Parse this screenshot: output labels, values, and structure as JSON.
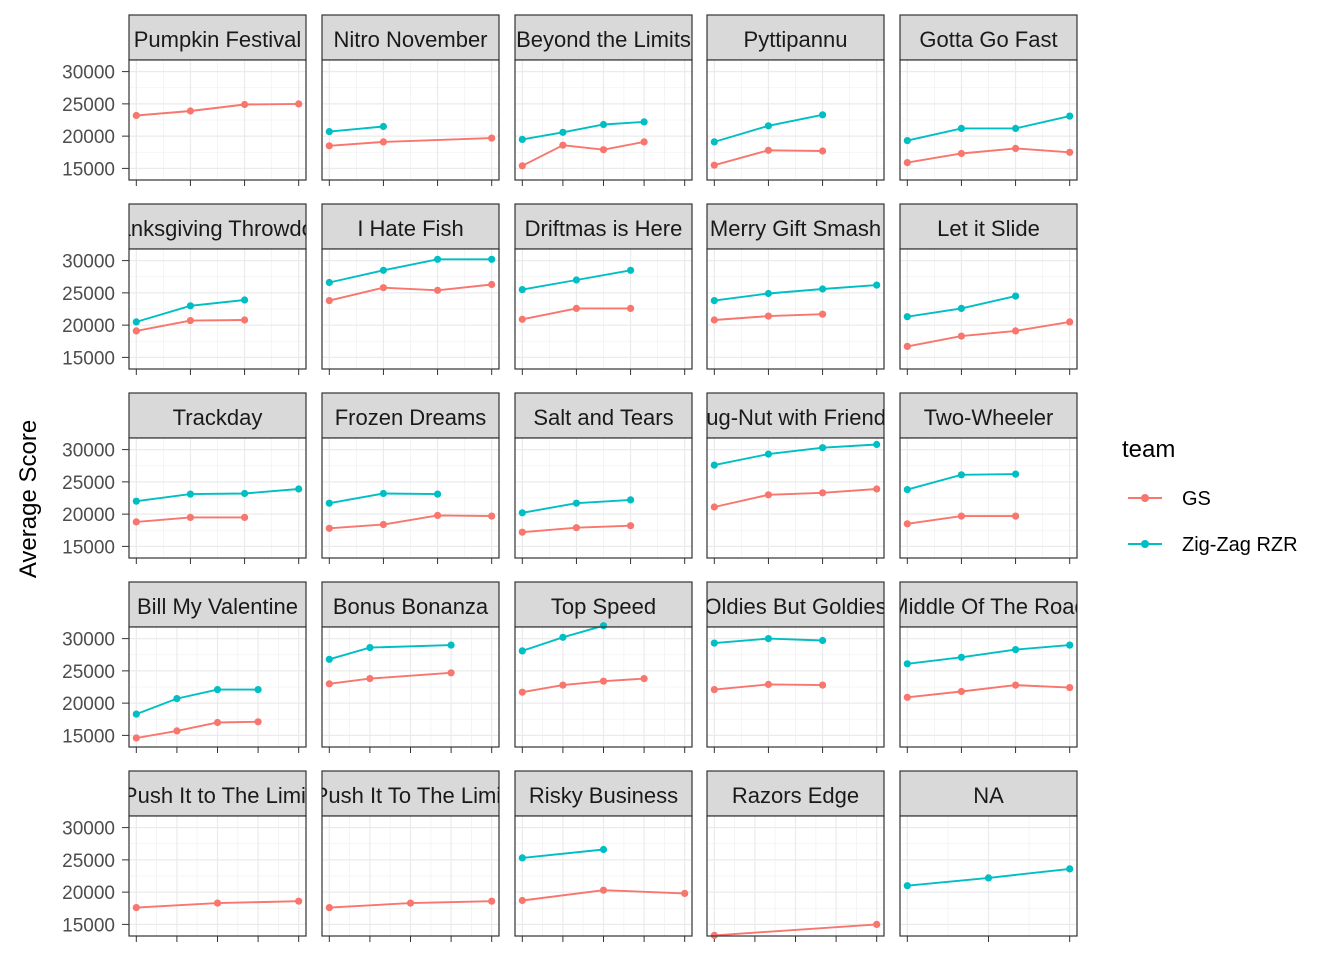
{
  "chart_data": {
    "type": "line",
    "facet_layout": "5x5 grid",
    "ylabel": "Average Score",
    "xlabel": "",
    "ylim": [
      13200,
      31800
    ],
    "y_ticks": [
      15000,
      20000,
      25000,
      30000
    ],
    "x_tick_labels_shown": false,
    "grid": true,
    "legend": {
      "title": "team",
      "placement": "right",
      "entries": [
        {
          "name": "GS",
          "color": "#F8766D"
        },
        {
          "name": "Zig-Zag RZR",
          "color": "#00BFC4"
        }
      ]
    },
    "series_colors": {
      "GS": "#F8766D",
      "Zig-Zag RZR": "#00BFC4"
    },
    "facets": [
      {
        "title": "Pumpkin Festival",
        "x": [
          1,
          2,
          3,
          4
        ],
        "series": [
          {
            "team": "GS",
            "points": [
              [
                1,
                23200
              ],
              [
                2,
                23900
              ],
              [
                3,
                24900
              ],
              [
                4,
                25000
              ]
            ]
          }
        ]
      },
      {
        "title": "Nitro November",
        "x": [
          1,
          2,
          3,
          4
        ],
        "series": [
          {
            "team": "GS",
            "points": [
              [
                1,
                18500
              ],
              [
                2,
                19100
              ],
              [
                4,
                19700
              ]
            ]
          },
          {
            "team": "Zig-Zag RZR",
            "points": [
              [
                1,
                20700
              ],
              [
                2,
                21500
              ]
            ]
          }
        ]
      },
      {
        "title": "Beyond the Limits",
        "x": [
          1,
          2,
          3,
          4,
          5
        ],
        "series": [
          {
            "team": "GS",
            "points": [
              [
                1,
                15400
              ],
              [
                2,
                18600
              ],
              [
                3,
                17900
              ],
              [
                4,
                19100
              ]
            ]
          },
          {
            "team": "Zig-Zag RZR",
            "points": [
              [
                1,
                19500
              ],
              [
                2,
                20600
              ],
              [
                3,
                21800
              ],
              [
                4,
                22200
              ]
            ]
          }
        ]
      },
      {
        "title": "Pyttipannu",
        "x": [
          1,
          2,
          3,
          4
        ],
        "series": [
          {
            "team": "GS",
            "points": [
              [
                1,
                15500
              ],
              [
                2,
                17800
              ],
              [
                3,
                17700
              ]
            ]
          },
          {
            "team": "Zig-Zag RZR",
            "points": [
              [
                1,
                19100
              ],
              [
                2,
                21600
              ],
              [
                3,
                23300
              ]
            ]
          }
        ]
      },
      {
        "title": "Gotta Go Fast",
        "x": [
          1,
          2,
          3,
          4
        ],
        "series": [
          {
            "team": "GS",
            "points": [
              [
                1,
                15900
              ],
              [
                2,
                17300
              ],
              [
                3,
                18100
              ],
              [
                4,
                17500
              ]
            ]
          },
          {
            "team": "Zig-Zag RZR",
            "points": [
              [
                1,
                19300
              ],
              [
                2,
                21200
              ],
              [
                3,
                21200
              ],
              [
                4,
                23100
              ]
            ]
          }
        ]
      },
      {
        "title": "Thanksgiving Throwdown",
        "x": [
          1,
          2,
          3,
          4
        ],
        "series": [
          {
            "team": "GS",
            "points": [
              [
                1,
                19100
              ],
              [
                2,
                20700
              ],
              [
                3,
                20800
              ]
            ]
          },
          {
            "team": "Zig-Zag RZR",
            "points": [
              [
                1,
                20500
              ],
              [
                2,
                23000
              ],
              [
                3,
                23900
              ]
            ]
          }
        ]
      },
      {
        "title": "I Hate Fish",
        "x": [
          1,
          2,
          3,
          4
        ],
        "series": [
          {
            "team": "GS",
            "points": [
              [
                1,
                23800
              ],
              [
                2,
                25800
              ],
              [
                3,
                25400
              ],
              [
                4,
                26300
              ]
            ]
          },
          {
            "team": "Zig-Zag RZR",
            "points": [
              [
                1,
                26600
              ],
              [
                2,
                28500
              ],
              [
                3,
                30200
              ],
              [
                4,
                30200
              ]
            ]
          }
        ]
      },
      {
        "title": "Driftmas is Here",
        "x": [
          1,
          2,
          3,
          4
        ],
        "series": [
          {
            "team": "GS",
            "points": [
              [
                1,
                20900
              ],
              [
                2,
                22600
              ],
              [
                3,
                22600
              ]
            ]
          },
          {
            "team": "Zig-Zag RZR",
            "points": [
              [
                1,
                25500
              ],
              [
                2,
                27000
              ],
              [
                3,
                28500
              ]
            ]
          }
        ]
      },
      {
        "title": "Merry Gift Smash",
        "x": [
          1,
          2,
          3,
          4
        ],
        "series": [
          {
            "team": "GS",
            "points": [
              [
                1,
                20800
              ],
              [
                2,
                21400
              ],
              [
                3,
                21700
              ]
            ]
          },
          {
            "team": "Zig-Zag RZR",
            "points": [
              [
                1,
                23800
              ],
              [
                2,
                24900
              ],
              [
                3,
                25600
              ],
              [
                4,
                26200
              ]
            ]
          }
        ]
      },
      {
        "title": "Let it Slide",
        "x": [
          1,
          2,
          3,
          4
        ],
        "series": [
          {
            "team": "GS",
            "points": [
              [
                1,
                16700
              ],
              [
                2,
                18300
              ],
              [
                3,
                19100
              ],
              [
                4,
                20500
              ]
            ]
          },
          {
            "team": "Zig-Zag RZR",
            "points": [
              [
                1,
                21300
              ],
              [
                2,
                22600
              ],
              [
                3,
                24500
              ]
            ]
          }
        ]
      },
      {
        "title": "Trackday",
        "x": [
          1,
          2,
          3,
          4
        ],
        "series": [
          {
            "team": "GS",
            "points": [
              [
                1,
                18800
              ],
              [
                2,
                19500
              ],
              [
                3,
                19500
              ]
            ]
          },
          {
            "team": "Zig-Zag RZR",
            "points": [
              [
                1,
                22000
              ],
              [
                2,
                23100
              ],
              [
                3,
                23200
              ],
              [
                4,
                23900
              ]
            ]
          }
        ]
      },
      {
        "title": "Frozen Dreams",
        "x": [
          1,
          2,
          3,
          4
        ],
        "series": [
          {
            "team": "GS",
            "points": [
              [
                1,
                17800
              ],
              [
                2,
                18400
              ],
              [
                3,
                19800
              ],
              [
                4,
                19700
              ]
            ]
          },
          {
            "team": "Zig-Zag RZR",
            "points": [
              [
                1,
                21700
              ],
              [
                2,
                23200
              ],
              [
                3,
                23100
              ]
            ]
          }
        ]
      },
      {
        "title": "Salt and Tears",
        "x": [
          1,
          2,
          3,
          4
        ],
        "series": [
          {
            "team": "GS",
            "points": [
              [
                1,
                17200
              ],
              [
                2,
                17900
              ],
              [
                3,
                18200
              ]
            ]
          },
          {
            "team": "Zig-Zag RZR",
            "points": [
              [
                1,
                20200
              ],
              [
                2,
                21700
              ],
              [
                3,
                22200
              ]
            ]
          }
        ]
      },
      {
        "title": "Lug-Nut with Friends",
        "x": [
          1,
          2,
          3,
          4
        ],
        "series": [
          {
            "team": "GS",
            "points": [
              [
                1,
                21100
              ],
              [
                2,
                23000
              ],
              [
                3,
                23300
              ],
              [
                4,
                23900
              ]
            ]
          },
          {
            "team": "Zig-Zag RZR",
            "points": [
              [
                1,
                27600
              ],
              [
                2,
                29300
              ],
              [
                3,
                30300
              ],
              [
                4,
                30800
              ]
            ]
          }
        ]
      },
      {
        "title": "Two-Wheeler",
        "x": [
          1,
          2,
          3,
          4
        ],
        "series": [
          {
            "team": "GS",
            "points": [
              [
                1,
                18500
              ],
              [
                2,
                19700
              ],
              [
                3,
                19700
              ]
            ]
          },
          {
            "team": "Zig-Zag RZR",
            "points": [
              [
                1,
                23800
              ],
              [
                2,
                26100
              ],
              [
                3,
                26200
              ]
            ]
          }
        ]
      },
      {
        "title": "Bill My Valentine",
        "x": [
          1,
          2,
          3,
          4,
          5
        ],
        "series": [
          {
            "team": "GS",
            "points": [
              [
                1,
                14600
              ],
              [
                2,
                15700
              ],
              [
                3,
                17000
              ],
              [
                4,
                17100
              ]
            ]
          },
          {
            "team": "Zig-Zag RZR",
            "points": [
              [
                1,
                18300
              ],
              [
                2,
                20700
              ],
              [
                3,
                22100
              ],
              [
                4,
                22100
              ]
            ]
          }
        ]
      },
      {
        "title": "Bonus Bonanza",
        "x": [
          1,
          2,
          3,
          4,
          5
        ],
        "series": [
          {
            "team": "GS",
            "points": [
              [
                1,
                23000
              ],
              [
                2,
                23800
              ],
              [
                4,
                24700
              ]
            ]
          },
          {
            "team": "Zig-Zag RZR",
            "points": [
              [
                1,
                26800
              ],
              [
                2,
                28600
              ],
              [
                4,
                29000
              ]
            ]
          }
        ]
      },
      {
        "title": "Top Speed",
        "x": [
          1,
          2,
          3,
          4,
          5
        ],
        "series": [
          {
            "team": "GS",
            "points": [
              [
                1,
                21700
              ],
              [
                2,
                22800
              ],
              [
                3,
                23400
              ],
              [
                4,
                23800
              ]
            ]
          },
          {
            "team": "Zig-Zag RZR",
            "points": [
              [
                1,
                28100
              ],
              [
                2,
                30200
              ],
              [
                3,
                32000
              ]
            ]
          }
        ]
      },
      {
        "title": "Oldies But Goldies",
        "x": [
          1,
          2,
          3,
          4
        ],
        "series": [
          {
            "team": "GS",
            "points": [
              [
                1,
                22100
              ],
              [
                2,
                22900
              ],
              [
                3,
                22800
              ]
            ]
          },
          {
            "team": "Zig-Zag RZR",
            "points": [
              [
                1,
                29300
              ],
              [
                2,
                30000
              ],
              [
                3,
                29700
              ]
            ]
          }
        ]
      },
      {
        "title": "Middle Of The Road",
        "x": [
          1,
          2,
          3,
          4
        ],
        "series": [
          {
            "team": "GS",
            "points": [
              [
                1,
                20900
              ],
              [
                2,
                21800
              ],
              [
                3,
                22800
              ],
              [
                4,
                22400
              ]
            ]
          },
          {
            "team": "Zig-Zag RZR",
            "points": [
              [
                1,
                26100
              ],
              [
                2,
                27100
              ],
              [
                3,
                28300
              ],
              [
                4,
                29000
              ]
            ]
          }
        ]
      },
      {
        "title": "Push It to The Limit",
        "x": [
          1,
          2,
          3,
          4,
          5
        ],
        "series": [
          {
            "team": "GS",
            "points": [
              [
                1,
                17600
              ],
              [
                3,
                18300
              ],
              [
                5,
                18600
              ]
            ]
          }
        ]
      },
      {
        "title": "Push It To The Limit",
        "x": [
          1,
          2,
          3,
          4,
          5
        ],
        "series": [
          {
            "team": "GS",
            "points": [
              [
                1,
                17600
              ],
              [
                3,
                18300
              ],
              [
                5,
                18600
              ]
            ]
          }
        ]
      },
      {
        "title": "Risky Business",
        "x": [
          1,
          2,
          3,
          4,
          5
        ],
        "series": [
          {
            "team": "GS",
            "points": [
              [
                1,
                18700
              ],
              [
                3,
                20300
              ],
              [
                5,
                19800
              ]
            ]
          },
          {
            "team": "Zig-Zag RZR",
            "points": [
              [
                1,
                25300
              ],
              [
                3,
                26600
              ]
            ]
          }
        ]
      },
      {
        "title": "Razors Edge",
        "x": [
          1,
          2,
          3,
          4,
          5
        ],
        "series": [
          {
            "team": "GS",
            "points": [
              [
                1,
                13300
              ],
              [
                5,
                15000
              ]
            ]
          }
        ]
      },
      {
        "title": "NA",
        "x": [
          1,
          2,
          3
        ],
        "series": [
          {
            "team": "Zig-Zag RZR",
            "points": [
              [
                1,
                21000
              ],
              [
                2,
                22200
              ],
              [
                3,
                23600
              ]
            ]
          }
        ]
      }
    ]
  }
}
